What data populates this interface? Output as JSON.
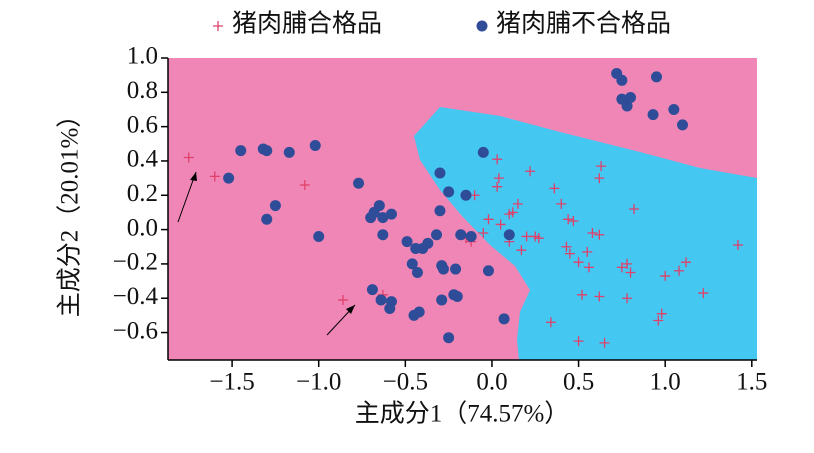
{
  "chart_data": {
    "type": "scatter",
    "xlabel": "主成分1（74.57%）",
    "ylabel": "主成分2（20.01%）",
    "xlim": [
      -1.87,
      1.53
    ],
    "ylim": [
      -0.76,
      1.0
    ],
    "xticks": [
      {
        "value": -1.5,
        "label": "−1.5"
      },
      {
        "value": -1.0,
        "label": "−1.0"
      },
      {
        "value": -0.5,
        "label": "−0.5"
      },
      {
        "value": 0.0,
        "label": "0.0"
      },
      {
        "value": 0.5,
        "label": "0.5"
      },
      {
        "value": 1.0,
        "label": "1.0"
      },
      {
        "value": 1.5,
        "label": "1.5"
      }
    ],
    "yticks": [
      {
        "value": 1.0,
        "label": "1.0"
      },
      {
        "value": 0.8,
        "label": "0.8"
      },
      {
        "value": 0.6,
        "label": "0.6"
      },
      {
        "value": 0.4,
        "label": "0.4"
      },
      {
        "value": 0.2,
        "label": "0.2"
      },
      {
        "value": 0.0,
        "label": "0.0"
      },
      {
        "value": -0.2,
        "label": "−0.2"
      },
      {
        "value": -0.4,
        "label": "−0.4"
      },
      {
        "value": -0.6,
        "label": "−0.6"
      }
    ],
    "series": [
      {
        "name": "猪肉脯合格品",
        "marker": "plus",
        "color": "#e0406a",
        "x": [
          -1.75,
          -1.6,
          -1.08,
          -0.86,
          -0.63,
          0.03,
          0.04,
          0.03,
          0.22,
          -0.1,
          -0.02,
          0.1,
          0.12,
          0.15,
          0.05,
          -0.05,
          -0.15,
          -0.12,
          0.2,
          0.25,
          0.27,
          0.17,
          0.1,
          0.36,
          0.4,
          0.44,
          0.47,
          0.43,
          0.45,
          0.5,
          0.55,
          0.58,
          0.62,
          0.62,
          0.63,
          0.56,
          0.75,
          0.78,
          0.8,
          0.82,
          0.78,
          0.62,
          0.52,
          0.5,
          0.65,
          0.34,
          0.96,
          0.98,
          1.0,
          1.08,
          1.12,
          1.22,
          1.42
        ],
        "values": [
          0.42,
          0.31,
          0.26,
          -0.41,
          -0.38,
          0.41,
          0.3,
          0.25,
          0.34,
          0.2,
          0.06,
          0.09,
          0.1,
          0.15,
          0.03,
          -0.02,
          -0.05,
          -0.07,
          -0.04,
          -0.04,
          -0.05,
          -0.12,
          -0.07,
          0.24,
          0.15,
          0.06,
          0.05,
          -0.1,
          -0.14,
          -0.19,
          -0.13,
          -0.02,
          -0.03,
          0.3,
          0.37,
          -0.22,
          -0.22,
          -0.2,
          -0.25,
          0.12,
          -0.4,
          -0.39,
          -0.38,
          -0.65,
          -0.66,
          -0.54,
          -0.53,
          -0.49,
          -0.27,
          -0.24,
          -0.19,
          -0.37,
          -0.09
        ]
      },
      {
        "name": "猪肉脯不合格品",
        "marker": "dot",
        "color": "#2f4c98",
        "x": [
          -1.52,
          -1.45,
          -1.32,
          -1.3,
          -1.17,
          -1.02,
          -1.25,
          -1.3,
          -1.0,
          -0.77,
          -0.68,
          -0.65,
          -0.7,
          -0.58,
          -0.63,
          -0.63,
          -0.69,
          -0.64,
          -0.59,
          -0.58,
          -0.49,
          -0.46,
          -0.44,
          -0.43,
          -0.4,
          -0.37,
          -0.32,
          -0.3,
          -0.3,
          -0.28,
          -0.29,
          -0.25,
          -0.22,
          -0.2,
          -0.21,
          -0.18,
          -0.15,
          -0.12,
          -0.05,
          -0.45,
          -0.42,
          -0.29,
          -0.25,
          -0.02,
          0.07,
          0.1,
          0.72,
          0.75,
          0.75,
          0.78,
          0.8,
          0.95,
          0.93,
          1.05,
          1.1
        ],
        "values": [
          0.3,
          0.46,
          0.47,
          0.46,
          0.45,
          0.49,
          0.14,
          0.06,
          -0.04,
          0.27,
          0.1,
          0.14,
          0.07,
          0.09,
          -0.03,
          0.07,
          -0.35,
          -0.41,
          -0.46,
          -0.42,
          -0.07,
          -0.2,
          -0.11,
          -0.25,
          -0.11,
          -0.08,
          -0.03,
          0.33,
          0.11,
          -0.23,
          -0.21,
          0.22,
          -0.38,
          -0.39,
          -0.23,
          -0.03,
          0.2,
          -0.04,
          0.45,
          -0.5,
          -0.48,
          -0.41,
          -0.63,
          -0.24,
          -0.52,
          -0.03,
          0.91,
          0.87,
          0.76,
          0.72,
          0.77,
          0.89,
          0.67,
          0.7,
          0.61
        ]
      }
    ]
  }
}
